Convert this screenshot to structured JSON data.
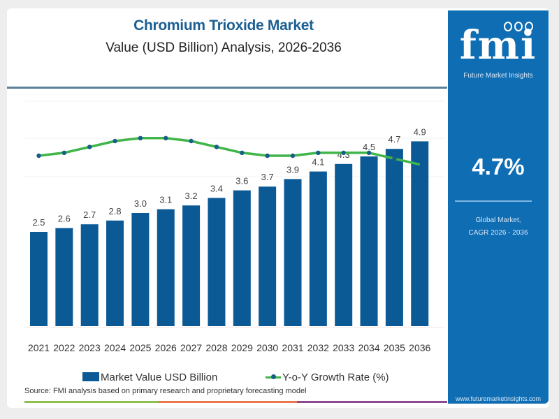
{
  "header": {
    "title": "Chromium Trioxide Market",
    "subtitle": "Value (USD Billion) Analysis, 2026-2036"
  },
  "side_panel": {
    "logo_text": "fmi",
    "logo_subtitle": "Future Market Insights",
    "cagr_value": "4.7%",
    "cagr_label_line1": "Global Market,",
    "cagr_label_line2": "CAGR 2026 - 2036",
    "website": "www.futuremarketinsights.com",
    "color": "#0f6db3"
  },
  "legend": {
    "bar_label": "Market Value USD Billion",
    "line_label": "Y-o-Y Growth Rate (%)"
  },
  "source": "Source: FMI analysis based on primary research and proprietary forecasting model",
  "chart_data": {
    "type": "bar",
    "title": "Chromium Trioxide Market",
    "subtitle": "Value (USD Billion) Analysis, 2026-2036",
    "xlabel": "",
    "ylabel": "",
    "categories": [
      "2021",
      "2022",
      "2023",
      "2024",
      "2025",
      "2026",
      "2027",
      "2028",
      "2029",
      "2030",
      "2031",
      "2032",
      "2033",
      "2034",
      "2035",
      "2036"
    ],
    "series": [
      {
        "name": "Market Value USD Billion",
        "type": "bar",
        "color": "#0b5a96",
        "values": [
          2.5,
          2.6,
          2.7,
          2.8,
          3.0,
          3.1,
          3.2,
          3.4,
          3.6,
          3.7,
          3.9,
          4.1,
          4.3,
          4.5,
          4.7,
          4.9
        ],
        "labels": [
          "2.5",
          "2.6",
          "2.7",
          "2.8",
          "3.0",
          "3.1",
          "3.2",
          "3.4",
          "3.6",
          "3.7",
          "3.9",
          "4.1",
          "4.3",
          "4.5",
          "4.7",
          "4.9"
        ]
      },
      {
        "name": "Y-o-Y Growth Rate (%)",
        "type": "line",
        "color": "#3fb54a",
        "marker_color": "#165f86",
        "values_estimated_relative": [
          4.4,
          4.5,
          4.7,
          4.9,
          5.0,
          5.0,
          4.9,
          4.7,
          4.5,
          4.4,
          4.4,
          4.5,
          4.5,
          4.5,
          4.3,
          4.1
        ]
      }
    ],
    "ylim": [
      0,
      5.0
    ],
    "line_ylim": [
      0,
      6
    ],
    "grid": true,
    "legend_position": "bottom"
  },
  "footer_strip_colors": [
    "#8cc152",
    "#e9774f",
    "#8e4a8f"
  ]
}
